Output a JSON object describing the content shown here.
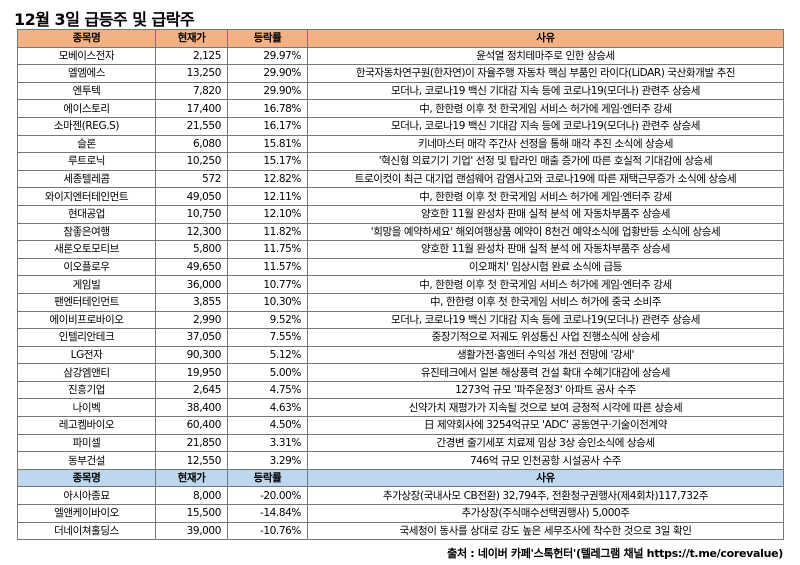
{
  "title": "12월 3일 급등주 및 급락주",
  "headers": {
    "name": "종목명",
    "price": "현재가",
    "rate": "등락률",
    "reason": "사유"
  },
  "gainers": [
    {
      "name": "모베이스전자",
      "price": "2,125",
      "rate": "29.97%",
      "reason": "윤석열 정치테마주로 인한 상승세"
    },
    {
      "name": "엘엠에스",
      "price": "13,250",
      "rate": "29.90%",
      "reason": "한국자동차연구원(한자연)이 자율주행 자동차 핵심 부품인 라이다(LiDAR) 국산화개발 추진"
    },
    {
      "name": "엔투텍",
      "price": "7,820",
      "rate": "29.90%",
      "reason": "모더나, 코로나19 백신 기대감 지속 등에 코로나19(모더나) 관련주 상승세"
    },
    {
      "name": "에이스토리",
      "price": "17,400",
      "rate": "16.78%",
      "reason": "中, 한한령 이후 첫 한국게임 서비스 허가에 게임·엔터주 강세"
    },
    {
      "name": "소마젠(REG.S)",
      "price": "21,550",
      "rate": "16.17%",
      "reason": "모더나, 코로나19 백신 기대감 지속 등에 코로나19(모더나) 관련주 상승세"
    },
    {
      "name": "슬론",
      "price": "6,080",
      "rate": "15.81%",
      "reason": "키네마스터 매각 주간사 선정을 통해 매각 추진 소식에 상승세"
    },
    {
      "name": "루트로닉",
      "price": "10,250",
      "rate": "15.17%",
      "reason": "'혁신형 의료기기 기업' 선정 및 탑라인 매출 증가에 따른 호실적 기대감에 상승세"
    },
    {
      "name": "세종텔레콤",
      "price": "572",
      "rate": "12.82%",
      "reason": "트로이컷이 최근 대기업 랜섬웨어 감염사고와 코로나19에 따른 재택근무증가 소식에 상승세"
    },
    {
      "name": "와이지엔터테인먼트",
      "price": "49,050",
      "rate": "12.11%",
      "reason": "中, 한한령 이후 첫 한국게임 서비스 허가에 게임·엔터주 강세"
    },
    {
      "name": "현대공업",
      "price": "10,750",
      "rate": "12.10%",
      "reason": "양호한 11월 완성차 판매 실적 분석 에 자동차부품주 상승세"
    },
    {
      "name": "참좋은여행",
      "price": "12,300",
      "rate": "11.82%",
      "reason": "'희망을 예약하세요' 해외여행상품 예약이 8천건 예약소식에 업황반등 소식에 상승세"
    },
    {
      "name": "새론오토모티브",
      "price": "5,800",
      "rate": "11.75%",
      "reason": "양호한 11월 완성차 판매 실적 분석 에 자동차부품주 상승세"
    },
    {
      "name": "이오플로우",
      "price": "49,650",
      "rate": "11.57%",
      "reason": "이오패치' 임상시험 완료 소식에 급등"
    },
    {
      "name": "게임빌",
      "price": "36,000",
      "rate": "10.77%",
      "reason": "中, 한한령 이후 첫 한국게임 서비스 허가에 게임·엔터주 강세"
    },
    {
      "name": "팬엔터테인먼트",
      "price": "3,855",
      "rate": "10.30%",
      "reason": "中, 한한령 이후 첫 한국게임 서비스 허가에 중국 소비주"
    },
    {
      "name": "에이비프로바이오",
      "price": "2,990",
      "rate": "9.52%",
      "reason": "모더나, 코로나19 백신 기대감 지속 등에 코로나19(모더나) 관련주 상승세"
    },
    {
      "name": "인텔리안테크",
      "price": "37,050",
      "rate": "7.55%",
      "reason": "중장기적으로 저궤도 위성통신 사업 진행소식에 상승세"
    },
    {
      "name": "LG전자",
      "price": "90,300",
      "rate": "5.12%",
      "reason": "생활가전·홈엔터 수익성 개선 전망에 '강세'"
    },
    {
      "name": "삼강엠앤티",
      "price": "19,950",
      "rate": "5.00%",
      "reason": "유진테크에서 일본 해상풍력 건설 확대 수혜기대감에 상승세"
    },
    {
      "name": "진흥기업",
      "price": "2,645",
      "rate": "4.75%",
      "reason": "1273억 규모 '파주운정3' 아파트 공사 수주"
    },
    {
      "name": "나이벡",
      "price": "38,400",
      "rate": "4.63%",
      "reason": "신약가치 재평가가 지속될 것으로 보여 긍정적 시각에 따른 상승세"
    },
    {
      "name": "레고켐바이오",
      "price": "60,400",
      "rate": "4.50%",
      "reason": "日 제약회사에 3254억규모 'ADC' 공동연구·기술이전계약"
    },
    {
      "name": "파미셀",
      "price": "21,850",
      "rate": "3.31%",
      "reason": "간경변 줄기세포 치료제 임상 3상 승인소식에 상승세"
    },
    {
      "name": "동부건설",
      "price": "12,550",
      "rate": "3.29%",
      "reason": "746억 규모 인천공항 시설공사 수주"
    }
  ],
  "losers": [
    {
      "name": "아시아종묘",
      "price": "8,000",
      "rate": "-20.00%",
      "reason": "추가상장(국내사모 CB전환) 32,794주, 전환청구권행사(제4회차)117,732주"
    },
    {
      "name": "엘앤케이바이오",
      "price": "15,500",
      "rate": "-14.84%",
      "reason": "추가상장(주식매수선택권행사) 5,000주"
    },
    {
      "name": "더네이쳐홀딩스",
      "price": "39,000",
      "rate": "-10.76%",
      "reason": "국세청이 동사를 상대로 강도 높은 세무조사에 착수한 것으로 3일 확인"
    }
  ],
  "source": "출처 : 네이버 카페'스톡헌터'(텔레그램 채널 https://t.me/corevalue)"
}
